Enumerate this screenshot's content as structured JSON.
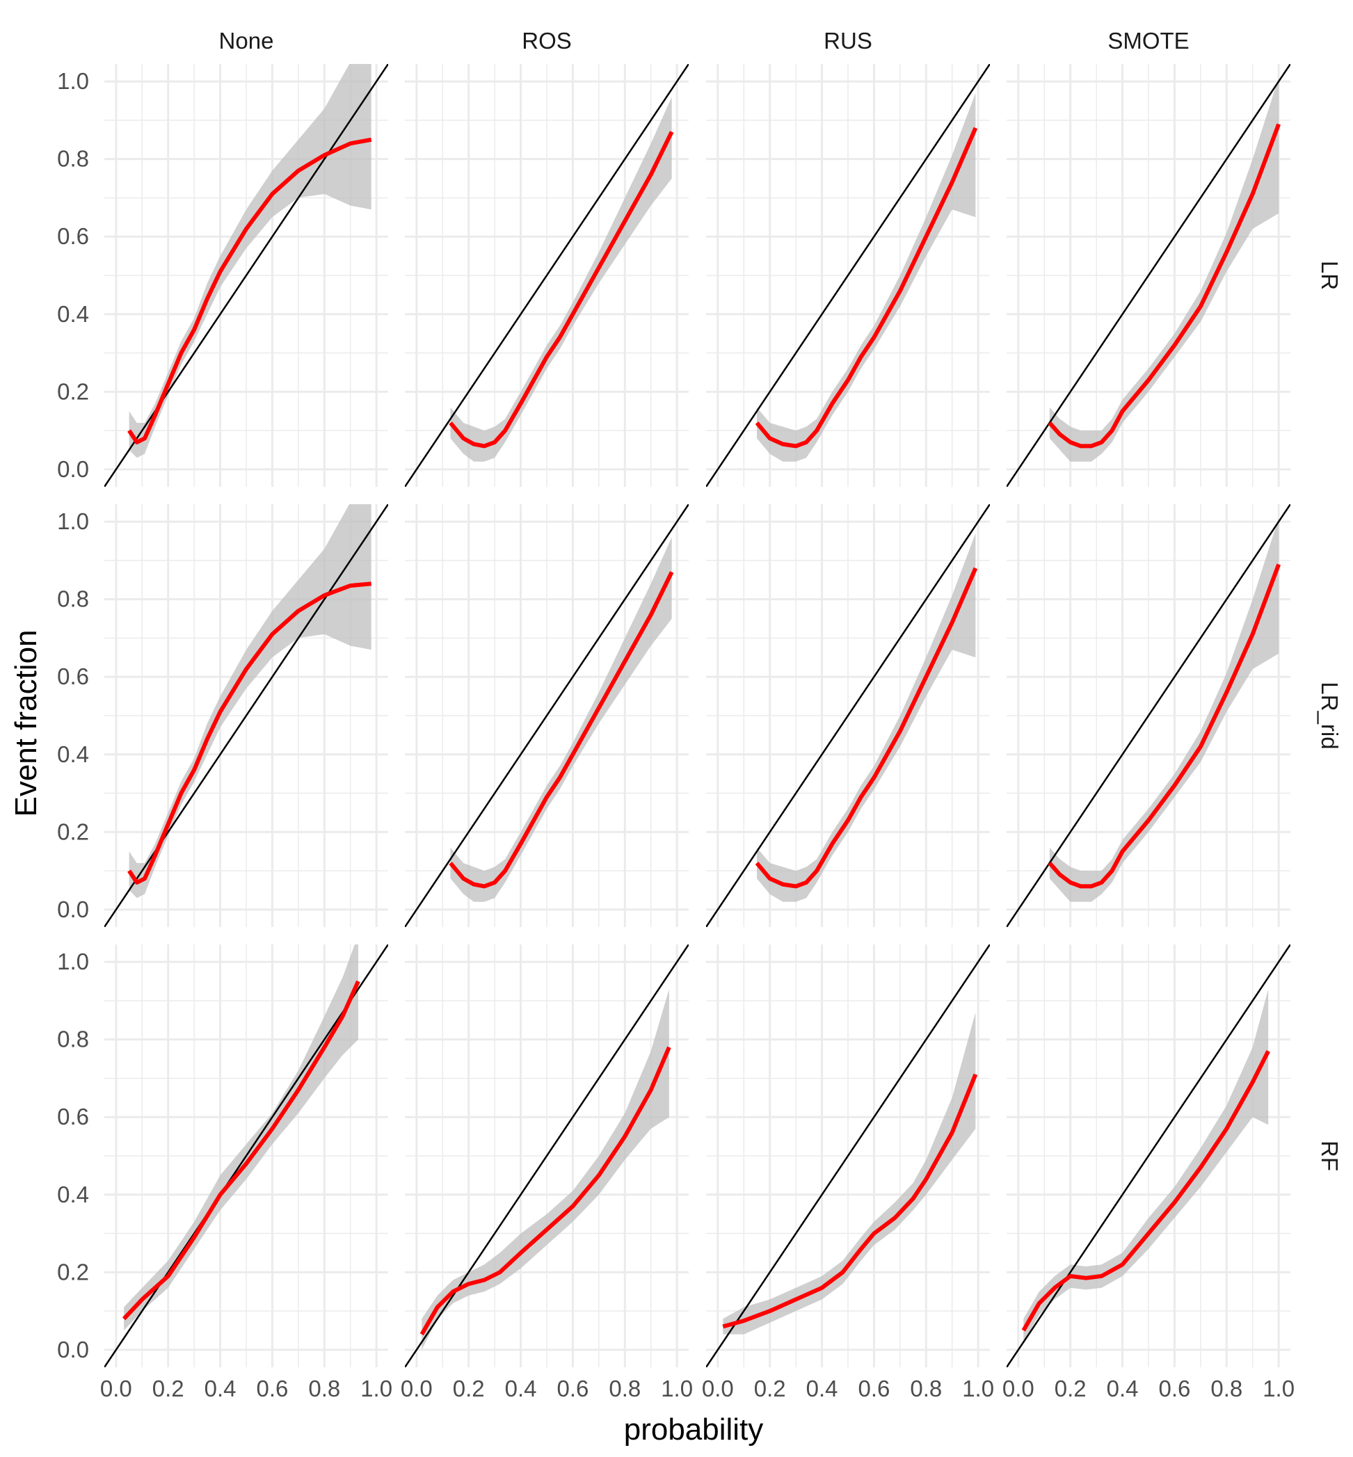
{
  "chart_data": {
    "type": "line",
    "layout": "facet grid (rows x columns)",
    "xlabel": "probability",
    "ylabel": "Event fraction",
    "xlim": [
      0,
      1
    ],
    "ylim": [
      0,
      1
    ],
    "x_ticks": [
      0.0,
      0.2,
      0.4,
      0.6,
      0.8,
      1.0
    ],
    "y_ticks": [
      0.0,
      0.2,
      0.4,
      0.6,
      0.8,
      1.0
    ],
    "x_tick_labels": [
      "0.0",
      "0.2",
      "0.4",
      "0.6",
      "0.8",
      "1.0"
    ],
    "y_tick_labels": [
      "0.0",
      "0.2",
      "0.4",
      "0.6",
      "0.8",
      "1.0"
    ],
    "columns": [
      "None",
      "ROS",
      "RUS",
      "SMOTE"
    ],
    "rows": [
      "LR",
      "LR_rid",
      "RF"
    ],
    "grid": true,
    "reference_line": "y = x",
    "colors": {
      "smooth": "#ff0000",
      "ribbon": "#bfbfbf",
      "reference": "#000000",
      "grid": "#ebebeb",
      "text": "#4d4d4d"
    },
    "panels": [
      {
        "row": "LR",
        "col": "None",
        "x": [
          0.05,
          0.08,
          0.11,
          0.15,
          0.2,
          0.25,
          0.3,
          0.35,
          0.4,
          0.5,
          0.6,
          0.7,
          0.8,
          0.9,
          0.98
        ],
        "y": [
          0.1,
          0.07,
          0.08,
          0.14,
          0.22,
          0.3,
          0.36,
          0.44,
          0.51,
          0.62,
          0.71,
          0.77,
          0.81,
          0.84,
          0.85
        ],
        "lower": [
          0.05,
          0.03,
          0.04,
          0.11,
          0.19,
          0.27,
          0.33,
          0.4,
          0.47,
          0.57,
          0.65,
          0.7,
          0.71,
          0.68,
          0.67
        ],
        "upper": [
          0.15,
          0.12,
          0.12,
          0.17,
          0.25,
          0.33,
          0.39,
          0.48,
          0.55,
          0.67,
          0.77,
          0.85,
          0.93,
          1.05,
          1.08
        ]
      },
      {
        "row": "LR",
        "col": "ROS",
        "x": [
          0.13,
          0.18,
          0.22,
          0.26,
          0.3,
          0.34,
          0.4,
          0.45,
          0.5,
          0.55,
          0.6,
          0.7,
          0.8,
          0.9,
          0.98
        ],
        "y": [
          0.12,
          0.08,
          0.065,
          0.06,
          0.07,
          0.1,
          0.17,
          0.23,
          0.29,
          0.34,
          0.4,
          0.52,
          0.64,
          0.76,
          0.87
        ],
        "lower": [
          0.08,
          0.04,
          0.02,
          0.02,
          0.03,
          0.07,
          0.14,
          0.2,
          0.26,
          0.31,
          0.37,
          0.48,
          0.58,
          0.68,
          0.75
        ],
        "upper": [
          0.16,
          0.12,
          0.11,
          0.1,
          0.11,
          0.13,
          0.2,
          0.26,
          0.32,
          0.37,
          0.43,
          0.56,
          0.7,
          0.84,
          0.96
        ]
      },
      {
        "row": "LR",
        "col": "RUS",
        "x": [
          0.15,
          0.2,
          0.25,
          0.3,
          0.34,
          0.38,
          0.44,
          0.5,
          0.55,
          0.6,
          0.7,
          0.8,
          0.9,
          0.99
        ],
        "y": [
          0.12,
          0.08,
          0.065,
          0.06,
          0.07,
          0.1,
          0.17,
          0.23,
          0.29,
          0.34,
          0.46,
          0.6,
          0.74,
          0.88
        ],
        "lower": [
          0.08,
          0.04,
          0.02,
          0.02,
          0.03,
          0.07,
          0.14,
          0.2,
          0.26,
          0.31,
          0.42,
          0.55,
          0.67,
          0.65
        ],
        "upper": [
          0.16,
          0.12,
          0.11,
          0.1,
          0.11,
          0.13,
          0.2,
          0.26,
          0.32,
          0.37,
          0.5,
          0.65,
          0.81,
          0.97
        ]
      },
      {
        "row": "LR",
        "col": "SMOTE",
        "x": [
          0.12,
          0.16,
          0.2,
          0.24,
          0.28,
          0.32,
          0.36,
          0.4,
          0.5,
          0.6,
          0.7,
          0.8,
          0.9,
          1.0
        ],
        "y": [
          0.12,
          0.09,
          0.07,
          0.06,
          0.06,
          0.07,
          0.1,
          0.15,
          0.23,
          0.32,
          0.42,
          0.56,
          0.71,
          0.89
        ],
        "lower": [
          0.08,
          0.05,
          0.02,
          0.02,
          0.02,
          0.04,
          0.07,
          0.12,
          0.2,
          0.29,
          0.38,
          0.51,
          0.62,
          0.66
        ],
        "upper": [
          0.16,
          0.13,
          0.11,
          0.1,
          0.1,
          0.1,
          0.13,
          0.18,
          0.26,
          0.35,
          0.46,
          0.61,
          0.8,
          1.01
        ]
      },
      {
        "row": "LR_rid",
        "col": "None",
        "x": [
          0.05,
          0.08,
          0.11,
          0.15,
          0.2,
          0.25,
          0.3,
          0.35,
          0.4,
          0.5,
          0.6,
          0.7,
          0.8,
          0.9,
          0.98
        ],
        "y": [
          0.1,
          0.07,
          0.08,
          0.14,
          0.22,
          0.3,
          0.36,
          0.44,
          0.51,
          0.62,
          0.71,
          0.77,
          0.81,
          0.835,
          0.84
        ],
        "lower": [
          0.05,
          0.03,
          0.04,
          0.11,
          0.19,
          0.27,
          0.33,
          0.4,
          0.47,
          0.57,
          0.65,
          0.7,
          0.71,
          0.68,
          0.67
        ],
        "upper": [
          0.15,
          0.12,
          0.12,
          0.17,
          0.25,
          0.33,
          0.39,
          0.48,
          0.55,
          0.67,
          0.77,
          0.85,
          0.93,
          1.05,
          1.08
        ]
      },
      {
        "row": "LR_rid",
        "col": "ROS",
        "x": [
          0.13,
          0.18,
          0.22,
          0.26,
          0.3,
          0.34,
          0.4,
          0.45,
          0.5,
          0.55,
          0.6,
          0.7,
          0.8,
          0.9,
          0.98
        ],
        "y": [
          0.12,
          0.08,
          0.065,
          0.06,
          0.07,
          0.1,
          0.17,
          0.23,
          0.29,
          0.34,
          0.4,
          0.52,
          0.64,
          0.76,
          0.87
        ],
        "lower": [
          0.08,
          0.04,
          0.02,
          0.02,
          0.03,
          0.07,
          0.14,
          0.2,
          0.26,
          0.31,
          0.37,
          0.48,
          0.58,
          0.68,
          0.75
        ],
        "upper": [
          0.16,
          0.12,
          0.11,
          0.1,
          0.11,
          0.13,
          0.2,
          0.26,
          0.32,
          0.37,
          0.43,
          0.56,
          0.7,
          0.84,
          0.96
        ]
      },
      {
        "row": "LR_rid",
        "col": "RUS",
        "x": [
          0.15,
          0.2,
          0.25,
          0.3,
          0.34,
          0.38,
          0.44,
          0.5,
          0.55,
          0.6,
          0.7,
          0.8,
          0.9,
          0.99
        ],
        "y": [
          0.12,
          0.08,
          0.065,
          0.06,
          0.07,
          0.1,
          0.17,
          0.23,
          0.29,
          0.34,
          0.46,
          0.6,
          0.74,
          0.88
        ],
        "lower": [
          0.08,
          0.04,
          0.02,
          0.02,
          0.03,
          0.07,
          0.14,
          0.2,
          0.26,
          0.31,
          0.42,
          0.55,
          0.67,
          0.65
        ],
        "upper": [
          0.16,
          0.12,
          0.11,
          0.1,
          0.11,
          0.13,
          0.2,
          0.26,
          0.32,
          0.37,
          0.5,
          0.65,
          0.81,
          0.97
        ]
      },
      {
        "row": "LR_rid",
        "col": "SMOTE",
        "x": [
          0.12,
          0.16,
          0.2,
          0.24,
          0.28,
          0.32,
          0.36,
          0.4,
          0.5,
          0.6,
          0.7,
          0.8,
          0.9,
          1.0
        ],
        "y": [
          0.12,
          0.09,
          0.07,
          0.06,
          0.06,
          0.07,
          0.1,
          0.15,
          0.23,
          0.32,
          0.42,
          0.56,
          0.71,
          0.89
        ],
        "lower": [
          0.08,
          0.05,
          0.02,
          0.02,
          0.02,
          0.04,
          0.07,
          0.12,
          0.2,
          0.29,
          0.38,
          0.51,
          0.62,
          0.66
        ],
        "upper": [
          0.16,
          0.13,
          0.11,
          0.1,
          0.1,
          0.1,
          0.13,
          0.18,
          0.26,
          0.35,
          0.46,
          0.61,
          0.8,
          1.01
        ]
      },
      {
        "row": "RF",
        "col": "None",
        "x": [
          0.03,
          0.1,
          0.2,
          0.3,
          0.4,
          0.5,
          0.6,
          0.7,
          0.8,
          0.87,
          0.93
        ],
        "y": [
          0.08,
          0.13,
          0.19,
          0.29,
          0.4,
          0.48,
          0.57,
          0.67,
          0.78,
          0.86,
          0.95
        ],
        "lower": [
          0.05,
          0.1,
          0.16,
          0.26,
          0.36,
          0.44,
          0.53,
          0.61,
          0.7,
          0.76,
          0.8
        ],
        "upper": [
          0.11,
          0.16,
          0.23,
          0.33,
          0.45,
          0.53,
          0.61,
          0.72,
          0.86,
          0.96,
          1.07
        ]
      },
      {
        "row": "RF",
        "col": "ROS",
        "x": [
          0.02,
          0.08,
          0.14,
          0.2,
          0.26,
          0.32,
          0.4,
          0.5,
          0.6,
          0.7,
          0.8,
          0.9,
          0.97
        ],
        "y": [
          0.04,
          0.11,
          0.15,
          0.17,
          0.18,
          0.2,
          0.25,
          0.31,
          0.37,
          0.45,
          0.55,
          0.67,
          0.78
        ],
        "lower": [
          0.0,
          0.08,
          0.12,
          0.14,
          0.15,
          0.17,
          0.21,
          0.27,
          0.33,
          0.4,
          0.49,
          0.57,
          0.6
        ],
        "upper": [
          0.08,
          0.14,
          0.18,
          0.2,
          0.22,
          0.25,
          0.3,
          0.35,
          0.41,
          0.5,
          0.61,
          0.77,
          0.93
        ]
      },
      {
        "row": "RF",
        "col": "RUS",
        "x": [
          0.02,
          0.1,
          0.2,
          0.3,
          0.4,
          0.48,
          0.55,
          0.6,
          0.68,
          0.75,
          0.8,
          0.9,
          0.99
        ],
        "y": [
          0.06,
          0.075,
          0.1,
          0.13,
          0.16,
          0.2,
          0.26,
          0.3,
          0.34,
          0.39,
          0.44,
          0.56,
          0.71
        ],
        "lower": [
          0.04,
          0.04,
          0.07,
          0.1,
          0.13,
          0.17,
          0.23,
          0.27,
          0.31,
          0.36,
          0.4,
          0.49,
          0.57
        ],
        "upper": [
          0.08,
          0.11,
          0.13,
          0.16,
          0.19,
          0.23,
          0.29,
          0.33,
          0.38,
          0.43,
          0.49,
          0.65,
          0.87
        ]
      },
      {
        "row": "RF",
        "col": "SMOTE",
        "x": [
          0.02,
          0.08,
          0.14,
          0.2,
          0.26,
          0.32,
          0.4,
          0.5,
          0.6,
          0.7,
          0.8,
          0.9,
          0.96
        ],
        "y": [
          0.05,
          0.12,
          0.16,
          0.19,
          0.185,
          0.19,
          0.22,
          0.3,
          0.38,
          0.47,
          0.57,
          0.69,
          0.77
        ],
        "lower": [
          0.02,
          0.09,
          0.13,
          0.16,
          0.155,
          0.16,
          0.19,
          0.26,
          0.34,
          0.42,
          0.51,
          0.6,
          0.58
        ],
        "upper": [
          0.08,
          0.15,
          0.19,
          0.22,
          0.215,
          0.22,
          0.25,
          0.34,
          0.42,
          0.52,
          0.63,
          0.78,
          0.93
        ]
      }
    ]
  }
}
